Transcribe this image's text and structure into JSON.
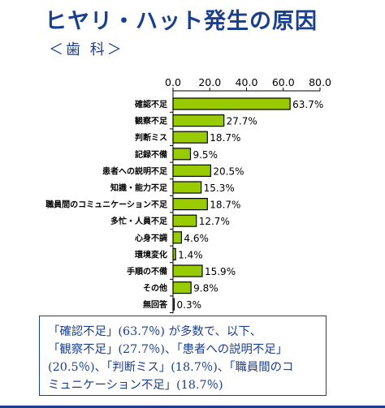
{
  "header": {
    "title": "ヒヤリ・ハット発生の原因",
    "subtitle": "＜歯 科＞"
  },
  "colors": {
    "title": "#1b3f8f",
    "bar_fill": "#99cc00",
    "bar_stroke": "#000000",
    "note_text": "#1b3f8f"
  },
  "chart_data": {
    "type": "bar",
    "orientation": "horizontal",
    "title": "",
    "xlabel": "",
    "ylabel": "",
    "xlim": [
      0,
      80
    ],
    "ticks": [
      "0.0",
      "20.0",
      "40.0",
      "60.0",
      "80.0"
    ],
    "tick_axis_position": "top",
    "grid": false,
    "legend": "none",
    "categories": [
      "確認不足",
      "観察不足",
      "判断ミス",
      "記録不備",
      "患者への説明不足",
      "知識・能力不足",
      "職員間のコミュニケーション不足",
      "多忙・人員不足",
      "心身不調",
      "環境変化",
      "手順の不備",
      "その他",
      "無回答"
    ],
    "values": [
      63.7,
      27.7,
      18.7,
      9.5,
      20.5,
      15.3,
      18.7,
      12.7,
      4.6,
      1.4,
      15.9,
      9.8,
      0.3
    ],
    "data_labels": [
      "63.7%",
      "27.7%",
      "18.7%",
      "9.5%",
      "20.5%",
      "15.3%",
      "18.7%",
      "12.7%",
      "4.6%",
      "1.4%",
      "15.9%",
      "9.8%",
      "0.3%"
    ]
  },
  "note": {
    "lines": [
      "「確認不足」(63.7％) が多数で、以下、",
      "「観察不足」(27.7％)、「患者への説明不足」",
      "(20.5％)、「判断ミス」(18.7％)、「職員間のコ",
      "ミュニケーション不足」(18.7％)"
    ]
  }
}
